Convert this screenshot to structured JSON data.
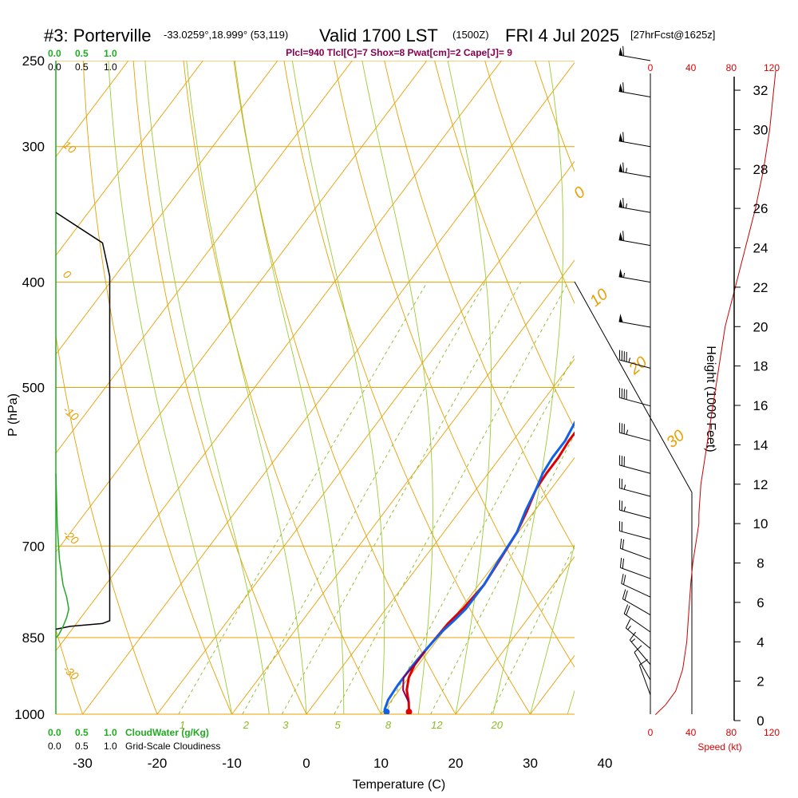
{
  "header": {
    "station": "#3: Porterville",
    "coords": "-33.0259°,18.999° (53,119)",
    "valid": "Valid 1700 LST",
    "utc": "(1500Z)",
    "date": "FRI 4 Jul 2025",
    "forecast": "[27hrFcst@1625z]",
    "indices": "Plcl=940 Tlcl[C]=7 Shox=8 Pwat[cm]=2 Cape[J]= 9"
  },
  "labels": {
    "cloudwater_ticks": [
      "0.0",
      "0.5",
      "1.0"
    ],
    "cloudiness_ticks": [
      "0.0",
      "0.5",
      "1.0"
    ],
    "cloudwater_label": "CloudWater (g/Kg)",
    "cloudiness_label": "Grid-Scale Cloudiness",
    "speed_label": "Speed (kt)"
  },
  "chart_data": {
    "type": "line",
    "xlabel": "Temperature (C)",
    "ylabel": "P (hPa)",
    "y2label": "Height (1000 Feet)",
    "xlim": [
      -35,
      36
    ],
    "ylim": [
      1000,
      250
    ],
    "x_ticks": [
      "-30",
      "-20",
      "-10",
      "0",
      "10",
      "20",
      "30",
      "40"
    ],
    "p_levels": [
      {
        "p": 250,
        "label": "250"
      },
      {
        "p": 300,
        "label": "300"
      },
      {
        "p": 400,
        "label": "400"
      },
      {
        "p": 500,
        "label": "500"
      },
      {
        "p": 700,
        "label": "700"
      },
      {
        "p": 850,
        "label": "850"
      },
      {
        "p": 1000,
        "label": "1000"
      }
    ],
    "height_ticks": [
      "0",
      "2",
      "4",
      "6",
      "8",
      "10",
      "12",
      "14",
      "16",
      "18",
      "20",
      "22",
      "24",
      "26",
      "28",
      "30",
      "32"
    ],
    "speed_ticks": [
      "0",
      "40",
      "80",
      "120"
    ],
    "isotherm_labels": [
      "10",
      "0",
      "-10",
      "-20",
      "-30"
    ],
    "dry_adiabat_labels": [
      "0",
      "10",
      "20",
      "30"
    ],
    "mixing_ratio_labels": [
      "1",
      "2",
      "3",
      "5",
      "8",
      "12",
      "20"
    ],
    "series": [
      {
        "name": "temperature",
        "color": "#e00000",
        "points": [
          [
            13.5,
            995
          ],
          [
            12.5,
            975
          ],
          [
            11,
            950
          ],
          [
            10,
            925
          ],
          [
            9.5,
            900
          ],
          [
            9.5,
            875
          ],
          [
            9.8,
            825
          ],
          [
            10.3,
            800
          ],
          [
            10.7,
            760
          ],
          [
            10.3,
            720
          ],
          [
            9.8,
            680
          ],
          [
            9,
            650
          ],
          [
            8,
            620
          ],
          [
            7.8,
            600
          ],
          [
            7.8,
            580
          ],
          [
            7.5,
            560
          ],
          [
            7.5,
            540
          ],
          [
            6.8,
            510
          ],
          [
            5.5,
            480
          ],
          [
            3.3,
            450
          ],
          [
            0.8,
            420
          ],
          [
            -1,
            400
          ],
          [
            -3.5,
            380
          ],
          [
            -5,
            362
          ],
          [
            -6.5,
            345
          ],
          [
            -7.5,
            330
          ],
          [
            -8.8,
            310
          ],
          [
            -10,
            290
          ],
          [
            -12,
            270
          ],
          [
            -12.5,
            260
          ]
        ]
      },
      {
        "name": "dewpoint",
        "color": "#1060e8",
        "points": [
          [
            10.5,
            995
          ],
          [
            10,
            990
          ],
          [
            9.5,
            970
          ],
          [
            9.3,
            940
          ],
          [
            9.3,
            900
          ],
          [
            9.5,
            870
          ],
          [
            9.8,
            840
          ],
          [
            10.3,
            820
          ],
          [
            10.7,
            800
          ],
          [
            10.7,
            760
          ],
          [
            10.2,
            720
          ],
          [
            9.8,
            680
          ],
          [
            8.8,
            650
          ],
          [
            8,
            620
          ],
          [
            7.3,
            600
          ],
          [
            7,
            580
          ],
          [
            7,
            560
          ],
          [
            6.5,
            540
          ],
          [
            5.6,
            510
          ],
          [
            4.5,
            490
          ],
          [
            2.5,
            460
          ],
          [
            0.2,
            430
          ],
          [
            -2,
            410
          ],
          [
            -4,
            395
          ],
          [
            -6,
            380
          ],
          [
            -8,
            365
          ],
          [
            -9.5,
            350
          ],
          [
            -12,
            330
          ],
          [
            -15,
            310
          ],
          [
            -18,
            290
          ],
          [
            -21.5,
            270
          ],
          [
            -24,
            257
          ]
        ]
      },
      {
        "name": "parcel",
        "color": "#8a0050",
        "points": [
          [
            12.5,
            975
          ],
          [
            10.5,
            950
          ],
          [
            9.3,
            925
          ],
          [
            9.5,
            900
          ],
          [
            9.5,
            875
          ]
        ]
      },
      {
        "name": "grid-scale cloudiness",
        "color": "#000000",
        "fraction_points": [
          [
            0,
            345
          ],
          [
            0.65,
            368
          ],
          [
            0.75,
            395
          ],
          [
            0.75,
            820
          ],
          [
            0.65,
            825
          ],
          [
            0.2,
            830
          ],
          [
            0,
            835
          ]
        ]
      },
      {
        "name": "cloud water",
        "color": "#22aa22",
        "fraction_points": [
          [
            0,
            600
          ],
          [
            0.02,
            670
          ],
          [
            0.05,
            720
          ],
          [
            0.1,
            760
          ],
          [
            0.15,
            780
          ],
          [
            0.18,
            800
          ],
          [
            0.15,
            815
          ],
          [
            0.1,
            830
          ],
          [
            0.04,
            845
          ],
          [
            0,
            850
          ]
        ]
      },
      {
        "name": "wind speed",
        "color": "#cc0000",
        "speed_vs_height": [
          [
            5,
            0.3
          ],
          [
            15,
            0.8
          ],
          [
            25,
            1.5
          ],
          [
            32,
            2.6
          ],
          [
            36,
            4
          ],
          [
            38,
            5.5
          ],
          [
            40,
            7
          ],
          [
            42,
            8
          ],
          [
            45,
            9
          ],
          [
            48,
            10
          ],
          [
            48,
            10.5
          ],
          [
            50,
            12
          ],
          [
            56,
            14
          ],
          [
            62,
            16
          ],
          [
            68,
            18
          ],
          [
            74,
            20
          ],
          [
            84,
            22
          ],
          [
            94,
            24
          ],
          [
            104,
            26
          ],
          [
            112,
            28
          ],
          [
            118,
            30
          ],
          [
            122,
            32
          ],
          [
            124,
            33
          ]
        ]
      }
    ],
    "wind_barbs": [
      {
        "p": 250,
        "dir": 280,
        "kt": 60
      },
      {
        "p": 270,
        "dir": 280,
        "kt": 60
      },
      {
        "p": 300,
        "dir": 280,
        "kt": 60
      },
      {
        "p": 320,
        "dir": 280,
        "kt": 65
      },
      {
        "p": 345,
        "dir": 280,
        "kt": 65
      },
      {
        "p": 370,
        "dir": 280,
        "kt": 60
      },
      {
        "p": 400,
        "dir": 280,
        "kt": 55
      },
      {
        "p": 440,
        "dir": 280,
        "kt": 50
      },
      {
        "p": 480,
        "dir": 285,
        "kt": 45
      },
      {
        "p": 520,
        "dir": 285,
        "kt": 40
      },
      {
        "p": 560,
        "dir": 285,
        "kt": 35
      },
      {
        "p": 600,
        "dir": 285,
        "kt": 30
      },
      {
        "p": 630,
        "dir": 285,
        "kt": 25
      },
      {
        "p": 660,
        "dir": 285,
        "kt": 25
      },
      {
        "p": 690,
        "dir": 285,
        "kt": 20
      },
      {
        "p": 720,
        "dir": 290,
        "kt": 20
      },
      {
        "p": 750,
        "dir": 290,
        "kt": 20
      },
      {
        "p": 780,
        "dir": 295,
        "kt": 20
      },
      {
        "p": 810,
        "dir": 300,
        "kt": 20
      },
      {
        "p": 840,
        "dir": 305,
        "kt": 20
      },
      {
        "p": 870,
        "dir": 310,
        "kt": 15
      },
      {
        "p": 900,
        "dir": 320,
        "kt": 15
      },
      {
        "p": 930,
        "dir": 330,
        "kt": 10
      },
      {
        "p": 960,
        "dir": 340,
        "kt": 10
      }
    ]
  }
}
